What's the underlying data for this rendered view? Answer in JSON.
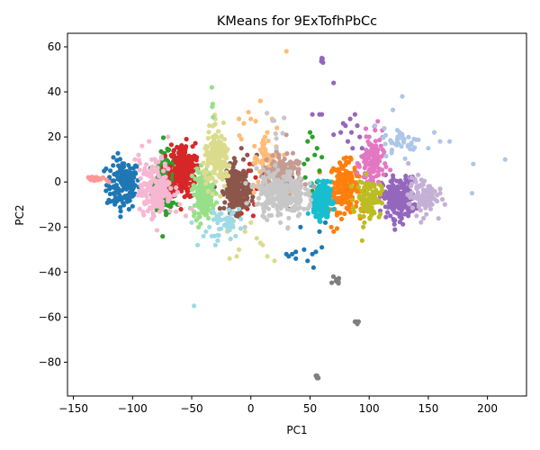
{
  "chart_data": {
    "type": "scatter",
    "title": "KMeans for 9ExTofhPbCc",
    "xlabel": "PC1",
    "ylabel": "PC2",
    "xlim": [
      -155,
      233
    ],
    "ylim": [
      -95,
      66
    ],
    "xticks": [
      -150,
      -100,
      -50,
      0,
      50,
      100,
      150,
      200
    ],
    "yticks": [
      -80,
      -60,
      -40,
      -20,
      0,
      20,
      40,
      60
    ],
    "xtick_labels": [
      "−150",
      "−100",
      "−50",
      "0",
      "50",
      "100",
      "150",
      "200"
    ],
    "ytick_labels": [
      "−80",
      "−60",
      "−40",
      "−20",
      "0",
      "20",
      "40",
      "60"
    ],
    "grid": false,
    "legend": "none",
    "marker_radius": 2.6,
    "clusters": [
      {
        "color": "#1f77b4",
        "cx": -108,
        "cy": -1,
        "sx": 7,
        "sy": 5.5,
        "n": 150,
        "extra": [
          [
            -120,
            -8
          ],
          [
            -115,
            -10
          ],
          [
            -110,
            -13
          ],
          [
            -109,
            3
          ],
          [
            35,
            -32
          ],
          [
            38,
            -34
          ],
          [
            32,
            -33
          ],
          [
            30,
            -32
          ],
          [
            52,
            -32
          ],
          [
            55,
            -31
          ],
          [
            60,
            -29
          ],
          [
            48,
            -35
          ],
          [
            42,
            -20
          ],
          [
            58,
            -22
          ],
          [
            63,
            -18
          ],
          [
            38,
            -31
          ],
          [
            53,
            -38
          ],
          [
            45,
            -30
          ]
        ]
      },
      {
        "color": "#ff7f0e",
        "cx": 79,
        "cy": -2,
        "sx": 6,
        "sy": 5.5,
        "n": 190,
        "extra": [
          [
            68,
            -20
          ],
          [
            70,
            -22
          ],
          [
            88,
            5
          ],
          [
            93,
            -12
          ]
        ]
      },
      {
        "color": "#2ca02c",
        "cx": -72,
        "cy": 0,
        "sx": 4.5,
        "sy": 6,
        "n": 230,
        "extra": [
          [
            -72,
            -13
          ],
          [
            -77,
            -12
          ],
          [
            -70,
            14
          ],
          [
            -65,
            12
          ],
          [
            -62,
            -10
          ],
          [
            50,
            22
          ],
          [
            52,
            20
          ],
          [
            48,
            18
          ],
          [
            56,
            15
          ],
          [
            54,
            12
          ],
          [
            48,
            10
          ],
          [
            45,
            8
          ],
          [
            60,
            11
          ],
          [
            58,
            5
          ],
          [
            62,
            -5
          ],
          [
            64,
            -12
          ],
          [
            58,
            -16
          ],
          [
            56,
            0
          ],
          [
            46,
            2
          ],
          [
            52,
            -4
          ]
        ]
      },
      {
        "color": "#d62728",
        "cx": -58,
        "cy": 5,
        "sx": 5.5,
        "sy": 6,
        "n": 240,
        "extra": [
          [
            -5,
            -8
          ],
          [
            0,
            -3
          ],
          [
            -2,
            5
          ],
          [
            3,
            -10
          ],
          [
            2,
            -15
          ],
          [
            -3,
            -12
          ],
          [
            -12,
            -6
          ],
          [
            -15,
            -10
          ],
          [
            -8,
            -14
          ],
          [
            5,
            -3
          ],
          [
            -1,
            8
          ],
          [
            -6,
            0
          ],
          [
            -10,
            4
          ],
          [
            -18,
            -5
          ],
          [
            4,
            2
          ]
        ]
      },
      {
        "color": "#9467bd",
        "cx": 125,
        "cy": -7,
        "sx": 7,
        "sy": 4.5,
        "n": 220,
        "extra": [
          [
            85,
            22
          ],
          [
            90,
            25
          ],
          [
            80,
            25
          ],
          [
            92,
            20
          ],
          [
            82,
            18
          ],
          [
            84,
            28
          ],
          [
            88,
            30
          ],
          [
            76,
            22
          ],
          [
            94,
            15
          ],
          [
            70,
            21
          ],
          [
            78,
            26
          ],
          [
            86,
            15
          ],
          [
            118,
            -15
          ],
          [
            133,
            -15
          ]
        ]
      },
      {
        "color": "#8c564b",
        "cx": -12,
        "cy": -3,
        "sx": 5,
        "sy": 5,
        "n": 230,
        "extra": [
          [
            20,
            -3
          ],
          [
            25,
            3
          ],
          [
            30,
            -1
          ],
          [
            35,
            2
          ],
          [
            40,
            4
          ],
          [
            28,
            -8
          ],
          [
            33,
            8
          ],
          [
            22,
            7
          ],
          [
            38,
            -4
          ],
          [
            42,
            -2
          ],
          [
            32,
            -12
          ],
          [
            26,
            -10
          ],
          [
            0,
            5
          ],
          [
            5,
            12
          ],
          [
            -3,
            12
          ],
          [
            2,
            8
          ],
          [
            -8,
            15
          ],
          [
            10,
            4
          ]
        ]
      },
      {
        "color": "#e377c2",
        "cx": 103,
        "cy": 8,
        "sx": 5,
        "sy": 6.5,
        "n": 110,
        "extra": [
          [
            100,
            20
          ],
          [
            105,
            23
          ],
          [
            110,
            16
          ],
          [
            96,
            12
          ],
          [
            112,
            12
          ],
          [
            98,
            -2
          ],
          [
            108,
            0
          ]
        ]
      },
      {
        "color": "#7f7f7f",
        "cx": 72,
        "cy": -44,
        "sx": 1.5,
        "sy": 0.8,
        "n": 8,
        "extra": [
          [
            56,
            -86
          ],
          [
            57,
            -87
          ],
          [
            55,
            -86
          ],
          [
            89,
            -62
          ],
          [
            90,
            -63
          ],
          [
            88,
            -62
          ],
          [
            91,
            -62
          ],
          [
            56,
            -87
          ]
        ]
      },
      {
        "color": "#bcbd22",
        "cx": 100,
        "cy": -7,
        "sx": 5,
        "sy": 4,
        "n": 110,
        "extra": [
          [
            95,
            -20
          ],
          [
            96,
            -18
          ],
          [
            94,
            -26
          ],
          [
            92,
            -15
          ],
          [
            104,
            -2
          ],
          [
            86,
            -8
          ]
        ]
      },
      {
        "color": "#17becf",
        "cx": 60,
        "cy": -8,
        "sx": 3.5,
        "sy": 4,
        "n": 240,
        "extra": [
          [
            53,
            -12
          ],
          [
            66,
            -4
          ],
          [
            62,
            -13
          ],
          [
            56,
            -3
          ]
        ]
      },
      {
        "color": "#aec7e8",
        "cx": 128,
        "cy": 18,
        "sx": 8,
        "sy": 3,
        "n": 40,
        "extra": [
          [
            120,
            32
          ],
          [
            128,
            38
          ],
          [
            155,
            22
          ],
          [
            160,
            18
          ],
          [
            150,
            15
          ],
          [
            168,
            18
          ],
          [
            188,
            8
          ],
          [
            187,
            -5
          ],
          [
            215,
            10
          ],
          [
            105,
            25
          ]
        ]
      },
      {
        "color": "#ffbb78",
        "cx": 14,
        "cy": 8,
        "sx": 7,
        "sy": 6,
        "n": 70,
        "extra": [
          [
            30,
            58
          ],
          [
            8,
            36
          ],
          [
            0,
            28
          ],
          [
            -2,
            31
          ],
          [
            4,
            27
          ],
          [
            -6,
            26
          ],
          [
            14,
            22
          ],
          [
            18,
            28
          ],
          [
            -10,
            28
          ],
          [
            22,
            24
          ],
          [
            12,
            20
          ],
          [
            28,
            12
          ],
          [
            -8,
            19
          ]
        ]
      },
      {
        "color": "#98df8a",
        "cx": -40,
        "cy": -5,
        "sx": 4,
        "sy": 5,
        "n": 220,
        "extra": [
          [
            -48,
            -15
          ],
          [
            -32,
            -12
          ],
          [
            -45,
            5
          ],
          [
            -36,
            4
          ]
        ]
      },
      {
        "color": "#ff9896",
        "cx": -133,
        "cy": 1.5,
        "sx": 2.5,
        "sy": 0.4,
        "n": 40,
        "extra": [
          [
            -120,
            0
          ],
          [
            -122,
            1
          ],
          [
            -125,
            2
          ]
        ]
      },
      {
        "color": "#c5b0d5",
        "cx": 145,
        "cy": -6,
        "sx": 6,
        "sy": 4,
        "n": 90,
        "extra": [
          [
            160,
            -5
          ],
          [
            164,
            -10
          ],
          [
            152,
            -12
          ],
          [
            140,
            -15
          ],
          [
            150,
            -2
          ]
        ]
      },
      {
        "color": "#c49c94",
        "cx": 27,
        "cy": 3,
        "sx": 8,
        "sy": 5,
        "n": 140,
        "extra": [
          [
            12,
            6
          ],
          [
            40,
            8
          ],
          [
            38,
            -4
          ],
          [
            18,
            8
          ]
        ]
      },
      {
        "color": "#f7b6d2",
        "cx": -80,
        "cy": -3,
        "sx": 7,
        "sy": 6,
        "n": 200,
        "extra": [
          [
            -95,
            12
          ],
          [
            -92,
            16
          ],
          [
            -98,
            10
          ],
          [
            -86,
            18
          ],
          [
            -70,
            20
          ],
          [
            -60,
            -10
          ],
          [
            -55,
            -15
          ],
          [
            -50,
            -12
          ],
          [
            -94,
            -12
          ],
          [
            -90,
            -9
          ]
        ]
      },
      {
        "color": "#c7c7c7",
        "cx": 25,
        "cy": -5,
        "sx": 10,
        "sy": 5,
        "n": 240,
        "extra": [
          [
            40,
            -15
          ],
          [
            45,
            -12
          ],
          [
            50,
            -10
          ],
          [
            10,
            -15
          ],
          [
            15,
            -12
          ],
          [
            5,
            -10
          ],
          [
            -5,
            -20
          ],
          [
            25,
            -18
          ],
          [
            32,
            -16
          ],
          [
            42,
            -8
          ]
        ]
      },
      {
        "color": "#dbdb8d",
        "cx": -28,
        "cy": 10,
        "sx": 6,
        "sy": 6,
        "n": 150,
        "extra": [
          [
            -35,
            25
          ],
          [
            -30,
            28
          ],
          [
            -25,
            20
          ],
          [
            -20,
            -22
          ],
          [
            -15,
            -20
          ],
          [
            -12,
            -33
          ],
          [
            -10,
            -30
          ],
          [
            -5,
            -22
          ],
          [
            0,
            -18
          ],
          [
            5,
            -25
          ],
          [
            8,
            -27
          ],
          [
            10,
            -28
          ],
          [
            14,
            -33
          ],
          [
            20,
            -35
          ],
          [
            -18,
            -34
          ]
        ]
      },
      {
        "color": "#9edae5",
        "cx": -22,
        "cy": -18,
        "sx": 6,
        "sy": 4,
        "n": 40,
        "extra": [
          [
            -48,
            -55
          ],
          [
            -30,
            -28
          ],
          [
            -45,
            -28
          ],
          [
            -40,
            -24
          ],
          [
            -33,
            -24
          ],
          [
            -28,
            -26
          ],
          [
            -50,
            -18
          ],
          [
            -35,
            -20
          ],
          [
            -38,
            -22
          ],
          [
            -25,
            -14
          ],
          [
            -18,
            -16
          ],
          [
            -10,
            -12
          ]
        ]
      },
      {
        "color": "#9467bd",
        "cx": 60,
        "cy": 54,
        "sx": 0.4,
        "sy": 0.4,
        "n": 4,
        "extra": [
          [
            60,
            55
          ],
          [
            61,
            53
          ],
          [
            70,
            44
          ],
          [
            60,
            30
          ],
          [
            52,
            30
          ],
          [
            58,
            30
          ]
        ]
      },
      {
        "color": "#98df8a",
        "cx": -34,
        "cy": 32,
        "sx": 3,
        "sy": 2,
        "n": 3,
        "extra": [
          [
            -33,
            42
          ]
        ]
      },
      {
        "color": "#c7c7c7",
        "cx": 20,
        "cy": 22,
        "sx": 6,
        "sy": 4,
        "n": 8,
        "extra": []
      }
    ]
  }
}
